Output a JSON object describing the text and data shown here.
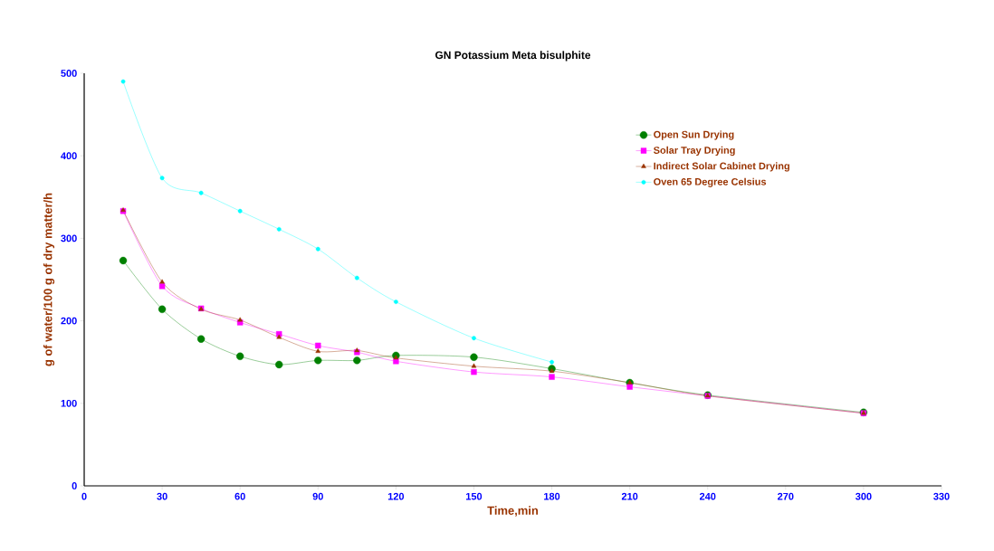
{
  "chart_data": {
    "type": "line",
    "title": "GN Potassium Meta bisulphite",
    "xlabel": "Time,min",
    "ylabel": "g of water/100 g of dry matter/h",
    "xlim": [
      0,
      330
    ],
    "xticks": [
      0,
      30,
      60,
      90,
      120,
      150,
      180,
      210,
      240,
      270,
      300,
      330
    ],
    "ylim": [
      0,
      500
    ],
    "yticks": [
      0,
      100,
      200,
      300,
      400,
      500
    ],
    "grid": false,
    "legend": "top right",
    "x": [
      15,
      30,
      45,
      60,
      75,
      90,
      105,
      120,
      150,
      180,
      210,
      240,
      300
    ],
    "series": [
      {
        "name": "Open Sun Drying",
        "color": "#008000",
        "marker": "circle",
        "values": [
          273,
          214,
          178,
          157,
          147,
          152,
          152,
          158,
          156,
          142,
          125,
          110,
          89
        ]
      },
      {
        "name": "Solar Tray Drying",
        "color": "#ff00ff",
        "marker": "square",
        "values": [
          333,
          242,
          215,
          198,
          184,
          170,
          162,
          151,
          138,
          132,
          120,
          109,
          88
        ]
      },
      {
        "name": "Indirect Solar Cabinet Drying",
        "color": "#993300",
        "marker": "triangle",
        "values": [
          334,
          247,
          214,
          201,
          180,
          163,
          164,
          155,
          145,
          139,
          125,
          109,
          88
        ]
      },
      {
        "name": "Oven 65 Degree Celsius",
        "color": "#00ffff",
        "marker": "circle",
        "x": [
          15,
          30,
          45,
          60,
          75,
          90,
          105,
          120,
          150,
          180
        ],
        "values": [
          490,
          373,
          355,
          333,
          311,
          287,
          252,
          223,
          179,
          150
        ]
      }
    ]
  }
}
